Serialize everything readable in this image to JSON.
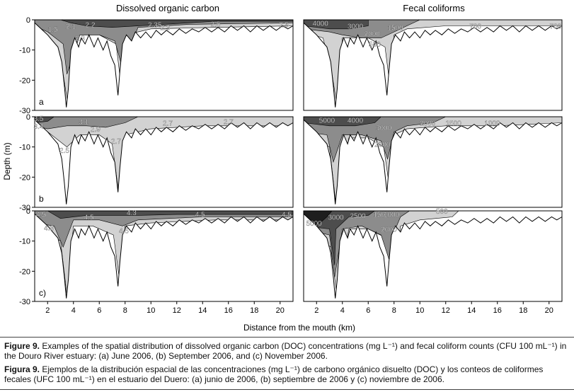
{
  "figure": {
    "column_titles": [
      "Dissolved organic carbon",
      "Fecal coliforms"
    ],
    "y_axis_label": "Depth (m)",
    "x_axis_label": "Distance from the mouth (km)",
    "y_ticks": [
      "0",
      "-10",
      "-20",
      "-30"
    ],
    "x_ticks": [
      "2",
      "4",
      "6",
      "8",
      "10",
      "12",
      "14",
      "16",
      "18",
      "20"
    ],
    "panel_letters": [
      "a",
      "b",
      "c)"
    ],
    "colors": {
      "frame": "#000000",
      "dark": "#4d4d4d",
      "mid": "#8c8c8c",
      "light": "#d2d2d2",
      "darkest": "#1e1e1e"
    }
  },
  "chart_data": [
    {
      "type": "heatmap",
      "variable": "Dissolved organic carbon",
      "panel": "a",
      "x_range": [
        1,
        21
      ],
      "y_range": [
        -30,
        0
      ],
      "contour_labels": [
        {
          "x": 2.4,
          "y": -3,
          "label": "1.5"
        },
        {
          "x": 3.8,
          "y": -2,
          "label": "2.1"
        },
        {
          "x": 5.3,
          "y": -1.5,
          "label": "2.2"
        },
        {
          "x": 4.5,
          "y": -6,
          "label": "2.3"
        },
        {
          "x": 10.3,
          "y": -1.5,
          "label": "2.35"
        },
        {
          "x": 11.1,
          "y": -2.5,
          "label": "2.3"
        },
        {
          "x": 15,
          "y": -1.3,
          "label": "2.5"
        },
        {
          "x": 20.3,
          "y": -1.5,
          "label": "2.5"
        }
      ]
    },
    {
      "type": "heatmap",
      "variable": "Dissolved organic carbon",
      "panel": "b",
      "x_range": [
        1,
        21
      ],
      "y_range": [
        -30,
        0
      ],
      "contour_labels": [
        {
          "x": 1.3,
          "y": -0.5,
          "label": "3.5"
        },
        {
          "x": 1.3,
          "y": -3,
          "label": "3.4"
        },
        {
          "x": 4.8,
          "y": -1.5,
          "label": "3.1"
        },
        {
          "x": 5.7,
          "y": -4,
          "label": "2.9"
        },
        {
          "x": 7.3,
          "y": -8,
          "label": "2.7"
        },
        {
          "x": 3.3,
          "y": -11,
          "label": "2.5"
        },
        {
          "x": 11.3,
          "y": -2,
          "label": "2.7"
        },
        {
          "x": 16,
          "y": -1.5,
          "label": "2.7"
        }
      ]
    },
    {
      "type": "heatmap",
      "variable": "Dissolved organic carbon",
      "panel": "c",
      "x_range": [
        1,
        21
      ],
      "y_range": [
        -30,
        0
      ],
      "contour_labels": [
        {
          "x": 1.5,
          "y": -1,
          "label": "4.5"
        },
        {
          "x": 2.1,
          "y": -5.5,
          "label": "4.3"
        },
        {
          "x": 5.2,
          "y": -2,
          "label": "4.5"
        },
        {
          "x": 8.5,
          "y": -0.5,
          "label": "4.3"
        },
        {
          "x": 7.9,
          "y": -6.5,
          "label": "4.5"
        },
        {
          "x": 13.8,
          "y": -1,
          "label": "4.5"
        },
        {
          "x": 20.5,
          "y": -1,
          "label": "4.5"
        }
      ]
    },
    {
      "type": "heatmap",
      "variable": "Fecal coliforms",
      "panel": "a",
      "x_range": [
        1,
        21
      ],
      "y_range": [
        -30,
        0
      ],
      "contour_labels": [
        {
          "x": 2.3,
          "y": -1,
          "label": "4000"
        },
        {
          "x": 5,
          "y": -2,
          "label": "3000"
        },
        {
          "x": 6.3,
          "y": -4.5,
          "label": "2000"
        },
        {
          "x": 8.1,
          "y": -2.5,
          "label": "1500"
        },
        {
          "x": 6.5,
          "y": -8,
          "label": "500"
        },
        {
          "x": 14.3,
          "y": -2,
          "label": "700"
        },
        {
          "x": 20.5,
          "y": -2,
          "label": "700"
        }
      ]
    },
    {
      "type": "heatmap",
      "variable": "Fecal coliforms",
      "panel": "b",
      "x_range": [
        1,
        21
      ],
      "y_range": [
        -30,
        0
      ],
      "contour_labels": [
        {
          "x": 2.8,
          "y": -1,
          "label": "5000"
        },
        {
          "x": 5,
          "y": -1,
          "label": "4000"
        },
        {
          "x": 7.2,
          "y": -3.5,
          "label": "3000"
        },
        {
          "x": 7.1,
          "y": -9,
          "label": "2000"
        },
        {
          "x": 10.6,
          "y": -2,
          "label": "2000"
        },
        {
          "x": 12.6,
          "y": -2,
          "label": "1500"
        },
        {
          "x": 15.6,
          "y": -2,
          "label": "1000"
        }
      ]
    },
    {
      "type": "heatmap",
      "variable": "Fecal coliforms",
      "panel": "c",
      "x_range": [
        1,
        21
      ],
      "y_range": [
        -30,
        0
      ],
      "contour_labels": [
        {
          "x": 1.8,
          "y": -4,
          "label": "5000"
        },
        {
          "x": 3.5,
          "y": -2,
          "label": "3000"
        },
        {
          "x": 5.2,
          "y": -1.5,
          "label": "2500"
        },
        {
          "x": 7,
          "y": -1,
          "label": "1500"
        },
        {
          "x": 7.8,
          "y": -1,
          "label": "1000"
        },
        {
          "x": 7.6,
          "y": -6,
          "label": "2000"
        },
        {
          "x": 11.7,
          "y": 0,
          "label": "500"
        }
      ]
    }
  ],
  "caption_en": {
    "prefix": "Figure 9.",
    "text": "Examples of the spatial distribution of dissolved organic carbon (DOC) concentrations (mg L⁻¹) and fecal coliform counts (CFU 100 mL⁻¹) in the Douro River estuary: (a) June 2006, (b) September 2006, and (c) November 2006."
  },
  "caption_es": {
    "prefix": "Figura 9.",
    "text": "Ejemplos de la distribución espacial de las concentraciones (mg L⁻¹) de carbono orgánico disuelto (DOC) y los conteos de coliformes fecales (UFC 100 mL⁻¹) en el estuario del Duero: (a) junio de 2006, (b) septiembre de 2006 y (c) noviembre de 2006."
  }
}
